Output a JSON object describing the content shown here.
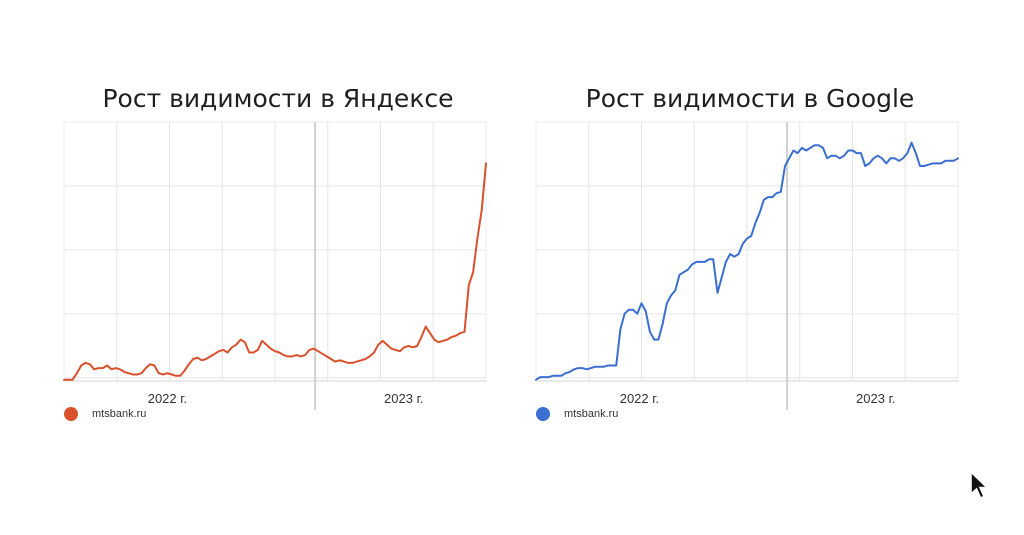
{
  "chart_data": [
    {
      "type": "line",
      "title": "Рост видимости в Яндексе",
      "color": "#d9512c",
      "x_tick_labels": [
        "2022 г.",
        "2023 г."
      ],
      "legend": {
        "placement": "bottom-left",
        "entries": [
          "mtsbank.ru"
        ]
      },
      "grid": true,
      "ylim": [
        0,
        100
      ],
      "series": [
        {
          "name": "mtsbank.ru",
          "values": [
            0.5,
            0.5,
            0.5,
            3,
            6,
            7,
            6.5,
            4.5,
            5,
            5,
            6,
            4.5,
            5,
            4.5,
            3.5,
            3,
            2.5,
            2.5,
            3,
            5,
            6.5,
            6,
            3,
            2.5,
            3,
            2.5,
            2,
            2,
            4,
            6.5,
            8.5,
            9,
            8,
            8.5,
            9.5,
            10.5,
            11.5,
            12,
            11,
            13,
            14,
            16,
            15,
            11,
            11,
            12,
            15.5,
            14,
            12.5,
            11.5,
            11,
            10,
            9.5,
            9.5,
            10,
            9.5,
            10,
            12,
            12.5,
            11.5,
            10.5,
            9.5,
            8.5,
            7.5,
            8,
            7.5,
            7,
            7,
            7.5,
            8,
            8.5,
            9.5,
            11,
            14,
            15.5,
            14,
            12.5,
            12,
            11.5,
            13,
            13.5,
            13,
            13.5,
            17,
            21,
            18.5,
            16,
            15,
            15.5,
            16,
            17,
            17.5,
            18.5,
            19,
            37,
            42,
            55,
            66,
            84
          ]
        }
      ]
    },
    {
      "type": "line",
      "title": "Рост видимости в Google",
      "color": "#3a6fd0",
      "x_tick_labels": [
        "2022 г.",
        "2023 г."
      ],
      "legend": {
        "placement": "bottom-left",
        "entries": [
          "mtsbank.ru"
        ]
      },
      "grid": true,
      "ylim": [
        0,
        100
      ],
      "series": [
        {
          "name": "mtsbank.ru",
          "values": [
            0.5,
            1.5,
            1.5,
            1.5,
            2,
            2,
            2,
            3,
            3.5,
            4.5,
            5,
            5,
            4.5,
            5,
            5.5,
            5.5,
            5.5,
            6,
            6,
            6,
            20,
            26,
            27.5,
            27.5,
            26,
            30,
            27,
            19,
            16,
            16,
            22,
            30,
            33,
            35,
            41,
            42,
            43,
            45,
            46,
            46,
            46,
            47,
            47,
            34,
            40,
            46,
            49,
            48,
            49,
            53,
            55,
            56,
            61,
            65,
            70,
            71,
            71,
            72.5,
            73,
            83,
            86,
            89,
            88,
            90,
            89,
            90,
            91,
            91,
            90,
            86,
            87,
            87,
            86,
            87,
            89,
            89,
            88,
            88,
            83,
            84,
            86,
            87,
            86,
            84,
            86,
            86,
            85,
            86,
            88,
            92,
            88,
            83,
            83,
            83.5,
            84,
            84,
            84,
            85,
            85,
            85,
            86
          ]
        }
      ]
    }
  ]
}
